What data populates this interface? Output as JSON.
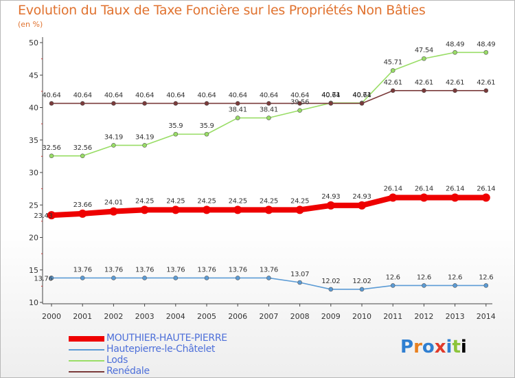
{
  "title": "Evolution du Taux de Taxe Foncière sur les Propriétés Non Bâties",
  "subtitle": "(en %)",
  "logo_text": "Proxiti",
  "chart_data": {
    "type": "line",
    "title": "Evolution du Taux de Taxe Foncière sur les Propriétés Non Bâties",
    "ylabel": "(en %)",
    "xlabel": "",
    "ylim": [
      10,
      50
    ],
    "yticks": [
      "10",
      "15",
      "20",
      "25",
      "30",
      "35",
      "40",
      "45",
      "50"
    ],
    "grid": false,
    "categories": [
      "2000",
      "2001",
      "2002",
      "2003",
      "2004",
      "2005",
      "2006",
      "2007",
      "2008",
      "2009",
      "2010",
      "2011",
      "2012",
      "2013",
      "2014"
    ],
    "series": [
      {
        "name": "MOUTHIER-HAUTE-PIERRE",
        "color": "#ee0000",
        "values": [
          23.43,
          23.66,
          24.01,
          24.25,
          24.25,
          24.25,
          24.25,
          24.25,
          24.25,
          24.93,
          24.93,
          26.14,
          26.14,
          26.14,
          26.14
        ],
        "labels": [
          "23.43",
          "23.66",
          "24.01",
          "24.25",
          "24.25",
          "24.25",
          "24.25",
          "24.25",
          "24.25",
          "24.93",
          "24.93",
          "26.14",
          "26.14",
          "26.14",
          "26.14"
        ]
      },
      {
        "name": "Hautepierre-le-Châtelet",
        "color": "#5b9bd5",
        "values": [
          13.76,
          13.76,
          13.76,
          13.76,
          13.76,
          13.76,
          13.76,
          13.76,
          13.07,
          12.02,
          12.02,
          12.6,
          12.6,
          12.6,
          12.6
        ],
        "labels": [
          "13.76",
          "13.76",
          "13.76",
          "13.76",
          "13.76",
          "13.76",
          "13.76",
          "13.76",
          "13.07",
          "12.02",
          "12.02",
          "12.6",
          "12.6",
          "12.6",
          "12.6"
        ]
      },
      {
        "name": "Lods",
        "color": "#99dd66",
        "values": [
          32.56,
          32.56,
          34.19,
          34.19,
          35.9,
          35.9,
          38.41,
          38.41,
          39.56,
          40.71,
          40.71,
          45.71,
          47.54,
          48.49,
          48.49
        ],
        "labels": [
          "32.56",
          "32.56",
          "34.19",
          "34.19",
          "35.9",
          "35.9",
          "38.41",
          "38.41",
          "39.56",
          "40.71",
          "40.71",
          "45.71",
          "47.54",
          "48.49",
          "48.49"
        ]
      },
      {
        "name": "Renédale",
        "color": "#7a3a3a",
        "values": [
          40.64,
          40.64,
          40.64,
          40.64,
          40.64,
          40.64,
          40.64,
          40.64,
          40.64,
          40.64,
          40.64,
          42.61,
          42.61,
          42.61,
          42.61
        ],
        "labels": [
          "40.64",
          "40.64",
          "40.64",
          "40.64",
          "40.64",
          "40.64",
          "40.64",
          "40.64",
          "40.64",
          "40.64",
          "40.64",
          "42.61",
          "42.61",
          "42.61",
          "42.61"
        ]
      }
    ]
  }
}
